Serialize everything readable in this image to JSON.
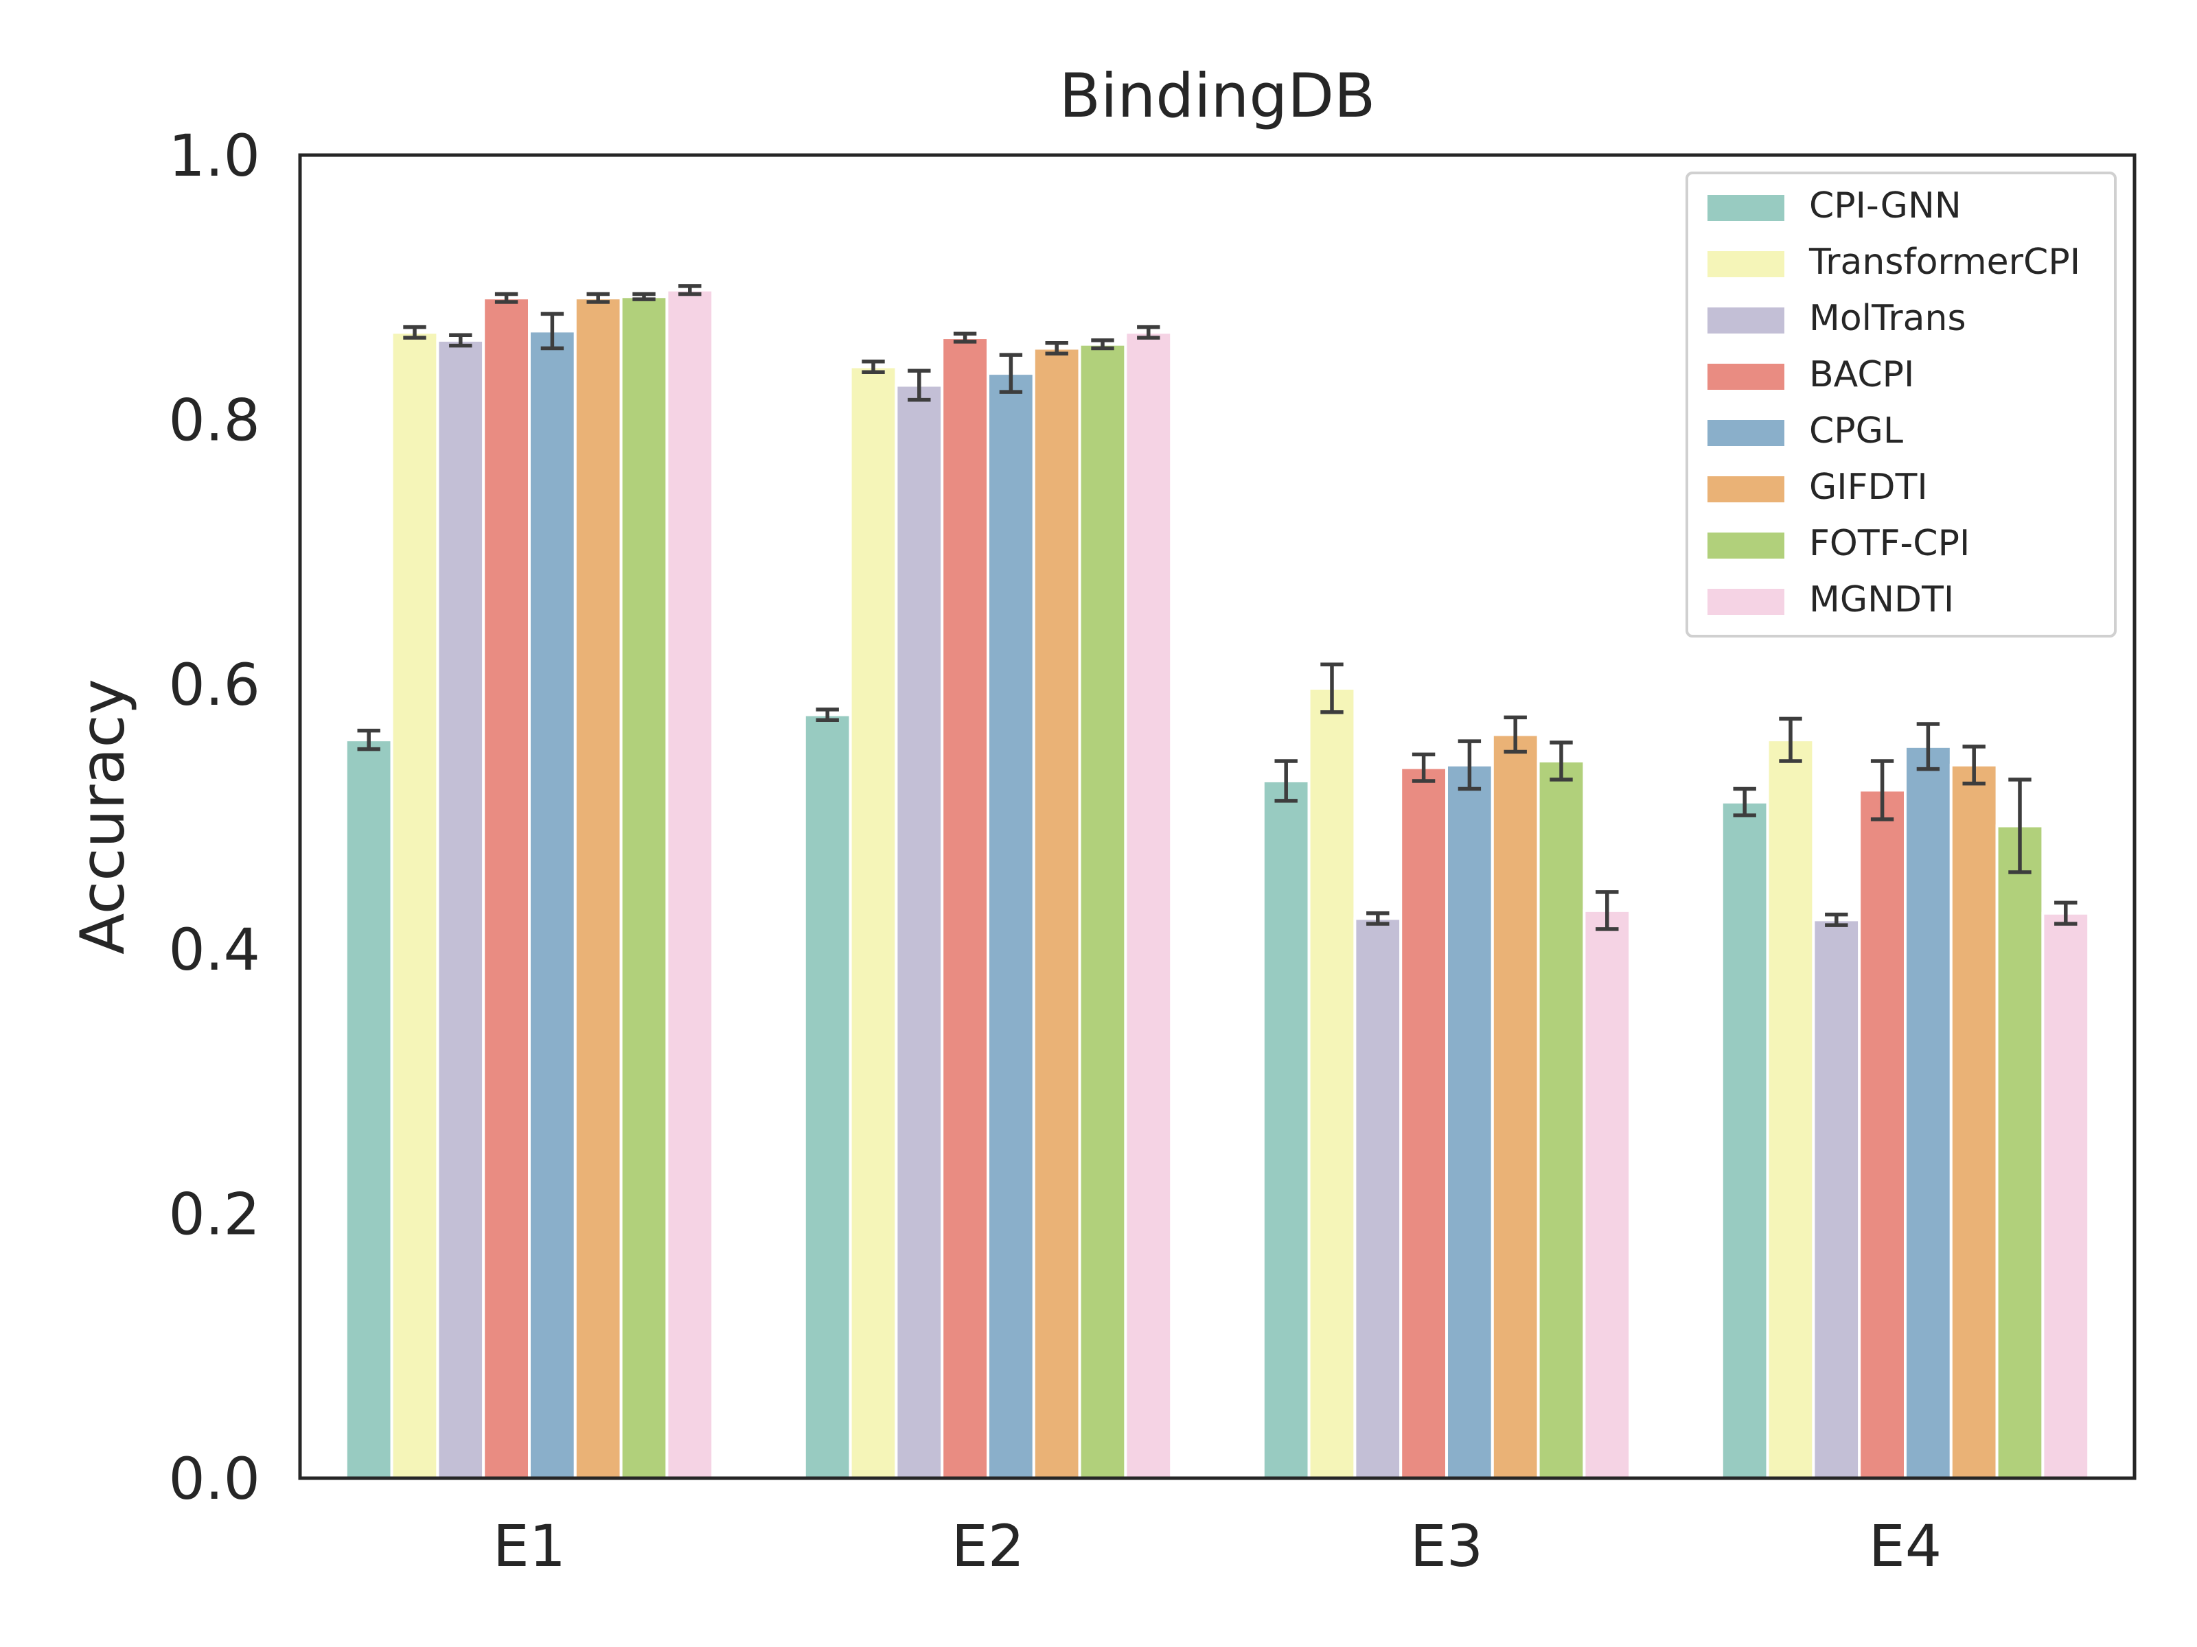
{
  "chart_data": {
    "type": "bar",
    "title": "BindingDB",
    "xlabel": "",
    "ylabel": "Accuracy",
    "ylim": [
      0,
      1.0
    ],
    "yticks": [
      "0.0",
      "0.2",
      "0.4",
      "0.6",
      "0.8",
      "1.0"
    ],
    "categories": [
      "E1",
      "E2",
      "E3",
      "E4"
    ],
    "grid": false,
    "legend_position": "top-right",
    "series": [
      {
        "name": "CPI-GNN",
        "color": "#98cbc1",
        "values": [
          0.558,
          0.577,
          0.527,
          0.511
        ],
        "errors": [
          0.007,
          0.004,
          0.015,
          0.01
        ]
      },
      {
        "name": "TransformerCPI",
        "color": "#f5f5b8",
        "values": [
          0.866,
          0.84,
          0.597,
          0.558
        ],
        "errors": [
          0.004,
          0.004,
          0.018,
          0.016
        ]
      },
      {
        "name": "MolTrans",
        "color": "#c3bfd6",
        "values": [
          0.86,
          0.826,
          0.423,
          0.422
        ],
        "errors": [
          0.004,
          0.011,
          0.004,
          0.004
        ]
      },
      {
        "name": "BACPI",
        "color": "#e98c82",
        "values": [
          0.892,
          0.862,
          0.537,
          0.52
        ],
        "errors": [
          0.003,
          0.003,
          0.01,
          0.022
        ]
      },
      {
        "name": "CPGL",
        "color": "#8aafca",
        "values": [
          0.867,
          0.835,
          0.539,
          0.553
        ],
        "errors": [
          0.013,
          0.014,
          0.018,
          0.017
        ]
      },
      {
        "name": "GIFDTI",
        "color": "#eab276",
        "values": [
          0.892,
          0.854,
          0.562,
          0.539
        ],
        "errors": [
          0.003,
          0.004,
          0.013,
          0.014
        ]
      },
      {
        "name": "FOTF-CPI",
        "color": "#b1d07b",
        "values": [
          0.893,
          0.857,
          0.542,
          0.493
        ],
        "errors": [
          0.002,
          0.003,
          0.014,
          0.035
        ]
      },
      {
        "name": "MGNDTI",
        "color": "#f5d3e4",
        "values": [
          0.898,
          0.866,
          0.429,
          0.427
        ],
        "errors": [
          0.003,
          0.004,
          0.014,
          0.008
        ]
      }
    ]
  }
}
